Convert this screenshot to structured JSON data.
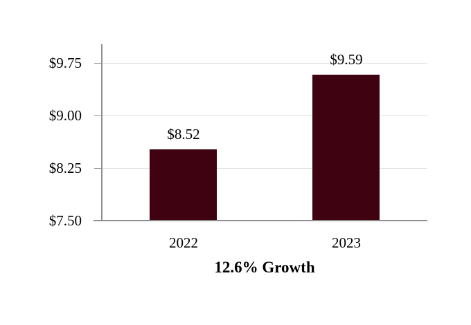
{
  "chart_data": {
    "type": "bar",
    "title": "12.6% Growth",
    "categories": [
      "2022",
      "2023"
    ],
    "values": [
      8.52,
      9.59
    ],
    "bar_labels": [
      "$8.52",
      "$9.59"
    ],
    "y_ticks": [
      {
        "value": 9.75,
        "label": "$9.75"
      },
      {
        "value": 9.0,
        "label": "$9.00"
      },
      {
        "value": 8.25,
        "label": "$8.25"
      },
      {
        "value": 7.5,
        "label": "$7.50"
      }
    ],
    "ylim": [
      7.5,
      10.02
    ],
    "grid": true,
    "legend_position": "none",
    "xlabel": "",
    "ylabel": "",
    "colors": {
      "bar": "#3E0211",
      "axis": "#8F8F8F",
      "gridline": "#E0E0E0",
      "text": "#000000"
    }
  }
}
